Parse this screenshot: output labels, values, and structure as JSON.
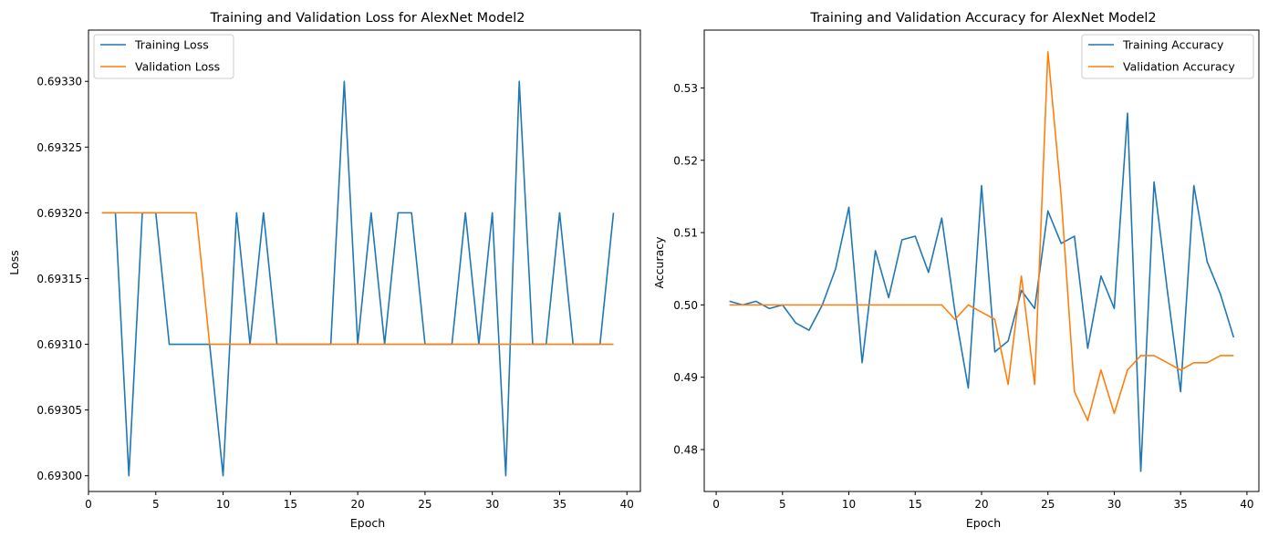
{
  "colors": {
    "training": "#1f77b4",
    "validation": "#ff7f0e"
  },
  "chart_data": [
    {
      "type": "line",
      "title": "Training and Validation Loss for AlexNet Model2",
      "xlabel": "Epoch",
      "ylabel": "Loss",
      "xlim": [
        0,
        41
      ],
      "ylim": [
        0.692988,
        0.693339
      ],
      "xticks": [
        0,
        5,
        10,
        15,
        20,
        25,
        30,
        35,
        40
      ],
      "yticks": [
        "0.69300",
        "0.69305",
        "0.69310",
        "0.69315",
        "0.69320",
        "0.69325",
        "0.69330"
      ],
      "ytick_values": [
        0.693,
        0.69305,
        0.6931,
        0.69315,
        0.6932,
        0.69325,
        0.6933
      ],
      "grid": false,
      "legend": "upper left",
      "x": [
        1,
        2,
        3,
        4,
        5,
        6,
        7,
        8,
        9,
        10,
        11,
        12,
        13,
        14,
        15,
        16,
        17,
        18,
        19,
        20,
        21,
        22,
        23,
        24,
        25,
        26,
        27,
        28,
        29,
        30,
        31,
        32,
        33,
        34,
        35,
        36,
        37,
        38,
        39
      ],
      "series": [
        {
          "name": "Training Loss",
          "values": [
            0.6932,
            0.6932,
            0.693,
            0.6932,
            0.6932,
            0.6931,
            0.6931,
            0.6931,
            0.6931,
            0.693,
            0.6932,
            0.6931,
            0.6932,
            0.6931,
            0.6931,
            0.6931,
            0.6931,
            0.6931,
            0.6933,
            0.6931,
            0.6932,
            0.6931,
            0.6932,
            0.6932,
            0.6931,
            0.6931,
            0.6931,
            0.6932,
            0.6931,
            0.6932,
            0.693,
            0.6933,
            0.6931,
            0.6931,
            0.6932,
            0.6931,
            0.6931,
            0.6931,
            0.6932
          ]
        },
        {
          "name": "Validation Loss",
          "values": [
            0.6932,
            0.6932,
            0.6932,
            0.6932,
            0.6932,
            0.6932,
            0.6932,
            0.6932,
            0.6931,
            0.6931,
            0.6931,
            0.6931,
            0.6931,
            0.6931,
            0.6931,
            0.6931,
            0.6931,
            0.6931,
            0.6931,
            0.6931,
            0.6931,
            0.6931,
            0.6931,
            0.6931,
            0.6931,
            0.6931,
            0.6931,
            0.6931,
            0.6931,
            0.6931,
            0.6931,
            0.6931,
            0.6931,
            0.6931,
            0.6931,
            0.6931,
            0.6931,
            0.6931,
            0.6931
          ]
        }
      ]
    },
    {
      "type": "line",
      "title": "Training and Validation Accuracy for AlexNet Model2",
      "xlabel": "Epoch",
      "ylabel": "Accuracy",
      "xlim": [
        -0.9,
        40.9
      ],
      "ylim": [
        0.4742,
        0.538
      ],
      "xticks": [
        0,
        5,
        10,
        15,
        20,
        25,
        30,
        35,
        40
      ],
      "yticks": [
        "0.48",
        "0.49",
        "0.50",
        "0.51",
        "0.52",
        "0.53"
      ],
      "ytick_values": [
        0.48,
        0.49,
        0.5,
        0.51,
        0.52,
        0.53
      ],
      "grid": false,
      "legend": "upper right",
      "x": [
        1,
        2,
        3,
        4,
        5,
        6,
        7,
        8,
        9,
        10,
        11,
        12,
        13,
        14,
        15,
        16,
        17,
        18,
        19,
        20,
        21,
        22,
        23,
        24,
        25,
        26,
        27,
        28,
        29,
        30,
        31,
        32,
        33,
        34,
        35,
        36,
        37,
        38,
        39
      ],
      "series": [
        {
          "name": "Training Accuracy",
          "values": [
            0.5005,
            0.5,
            0.5005,
            0.4995,
            0.5,
            0.4975,
            0.4965,
            0.5,
            0.505,
            0.5135,
            0.492,
            0.5075,
            0.501,
            0.509,
            0.5095,
            0.5045,
            0.512,
            0.499,
            0.4885,
            0.5165,
            0.4935,
            0.495,
            0.502,
            0.4995,
            0.513,
            0.5085,
            0.5095,
            0.494,
            0.504,
            0.4995,
            0.5265,
            0.477,
            0.517,
            0.502,
            0.488,
            0.5165,
            0.506,
            0.5015,
            0.4955
          ]
        },
        {
          "name": "Validation Accuracy",
          "values": [
            0.5,
            0.5,
            0.5,
            0.5,
            0.5,
            0.5,
            0.5,
            0.5,
            0.5,
            0.5,
            0.5,
            0.5,
            0.5,
            0.5,
            0.5,
            0.5,
            0.5,
            0.498,
            0.5,
            0.499,
            0.498,
            0.489,
            0.504,
            0.489,
            0.535,
            0.515,
            0.488,
            0.484,
            0.491,
            0.485,
            0.491,
            0.493,
            0.493,
            0.492,
            0.491,
            0.492,
            0.492,
            0.493,
            0.493
          ]
        }
      ]
    }
  ]
}
